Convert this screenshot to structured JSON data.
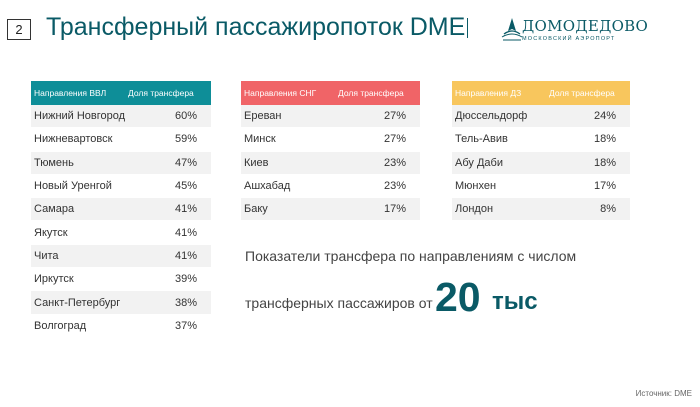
{
  "header": {
    "slide_number": "2",
    "title": "Трансферный пассажиропоток DME",
    "logo_main": "ДОМОДЕДОВО",
    "logo_sub": "МОСКОВСКИЙ АЭРОПОРТ"
  },
  "tables": {
    "vvl": {
      "col1": "Направления ВВЛ",
      "col2": "Доля трансфера",
      "header_color": "#0e8e98",
      "rows": [
        {
          "city": "Нижний Новгород",
          "share": "60%"
        },
        {
          "city": "Нижневартовск",
          "share": "59%"
        },
        {
          "city": "Тюмень",
          "share": "47%"
        },
        {
          "city": "Новый Уренгой",
          "share": "45%"
        },
        {
          "city": "Самара",
          "share": "41%"
        },
        {
          "city": "Якутск",
          "share": "41%"
        },
        {
          "city": "Чита",
          "share": "41%"
        },
        {
          "city": "Иркутск",
          "share": "39%"
        },
        {
          "city": "Санкт-Петербург",
          "share": "38%"
        },
        {
          "city": "Волгоград",
          "share": "37%"
        }
      ]
    },
    "sng": {
      "col1": "Направления СНГ",
      "col2": "Доля трансфера",
      "header_color": "#f06467",
      "rows": [
        {
          "city": "Ереван",
          "share": "27%"
        },
        {
          "city": "Минск",
          "share": "27%"
        },
        {
          "city": "Киев",
          "share": "23%"
        },
        {
          "city": "Ашхабад",
          "share": "23%"
        },
        {
          "city": "Баку",
          "share": "17%"
        }
      ]
    },
    "dz": {
      "col1": "Направления  ДЗ",
      "col2": "Доля трансфера",
      "header_color": "#f8c65d",
      "rows": [
        {
          "city": "Дюссельдорф",
          "share": "24%"
        },
        {
          "city": "Тель-Авив",
          "share": "18%"
        },
        {
          "city": "Абу Даби",
          "share": "18%"
        },
        {
          "city": "Мюнхен",
          "share": "17%"
        },
        {
          "city": "Лондон",
          "share": "8%"
        }
      ]
    }
  },
  "note": {
    "line1": "Показатели трансфера по направлениям с числом",
    "line2": "трансферных пассажиров от",
    "big_number": "20",
    "big_unit": "тыс"
  },
  "footer": {
    "source": "Источник: DME"
  }
}
